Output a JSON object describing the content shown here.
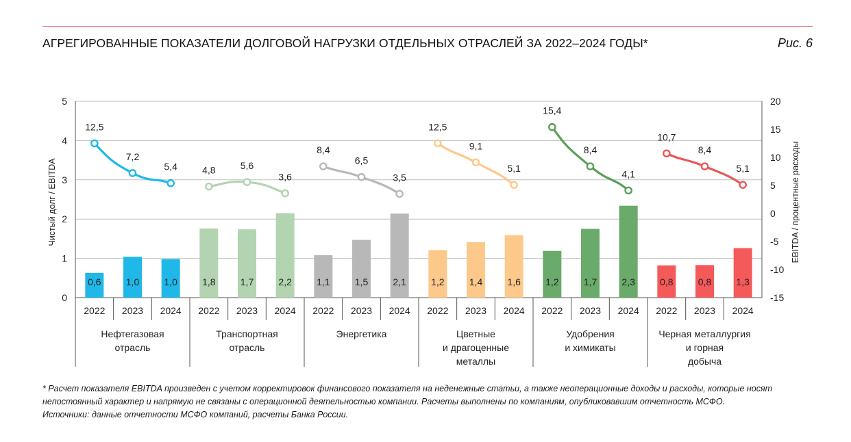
{
  "header": {
    "title": "АГРЕГИРОВАННЫЕ ПОКАЗАТЕЛИ ДОЛГОВОЙ НАГРУЗКИ ОТДЕЛЬНЫХ ОТРАСЛЕЙ ЗА 2022–2024 ГОДЫ*",
    "figure_label": "Рис. 6"
  },
  "colors": {
    "rule": "#e8787a",
    "gridline": "#bfbfbf"
  },
  "chart_data": {
    "type": "bar",
    "ylabel_left": "Чистый долг / EBITDA",
    "ylabel_right": "EBITDA / процентные расходы",
    "ylim_left": [
      0,
      5
    ],
    "yticks_left": [
      "0",
      "1",
      "2",
      "3",
      "4",
      "5"
    ],
    "ylim_right": [
      -15,
      20
    ],
    "yticks_right": [
      "-15",
      "-10",
      "-5",
      "0",
      "5",
      "10",
      "15",
      "20"
    ],
    "grid": true,
    "years": [
      "2022",
      "2023",
      "2024"
    ],
    "groups": [
      {
        "name_lines": [
          "Нефтегазовая",
          "отрасль"
        ],
        "bar_color": "#1fb8e8",
        "line_color": "#1fb8e8",
        "bar_values": [
          0.63,
          1.04,
          0.98
        ],
        "bar_labels": [
          "0,6",
          "1,0",
          "1,0"
        ],
        "line_values": [
          12.5,
          7.2,
          5.4
        ],
        "line_labels": [
          "12,5",
          "7,2",
          "5,4"
        ]
      },
      {
        "name_lines": [
          "Транспортная",
          "отрасль"
        ],
        "bar_color": "#b2d4b0",
        "line_color": "#b2d4b0",
        "bar_values": [
          1.76,
          1.74,
          2.15
        ],
        "bar_labels": [
          "1,8",
          "1,7",
          "2,2"
        ],
        "line_values": [
          4.8,
          5.6,
          3.6
        ],
        "line_labels": [
          "4,8",
          "5,6",
          "3,6"
        ]
      },
      {
        "name_lines": [
          "Энергетика"
        ],
        "bar_color": "#b8b8b8",
        "line_color": "#b8b8b8",
        "bar_values": [
          1.08,
          1.47,
          2.14
        ],
        "bar_labels": [
          "1,1",
          "1,5",
          "2,1"
        ],
        "line_values": [
          8.4,
          6.5,
          3.5
        ],
        "line_labels": [
          "8,4",
          "6,5",
          "3,5"
        ]
      },
      {
        "name_lines": [
          "Цветные",
          "и драгоценные",
          "металлы"
        ],
        "bar_color": "#fcc98a",
        "line_color": "#fcc98a",
        "bar_values": [
          1.21,
          1.41,
          1.59
        ],
        "bar_labels": [
          "1,2",
          "1,4",
          "1,6"
        ],
        "line_values": [
          12.5,
          9.1,
          5.1
        ],
        "line_labels": [
          "12,5",
          "9,1",
          "5,1"
        ]
      },
      {
        "name_lines": [
          "Удобрения",
          "и химикаты"
        ],
        "bar_color": "#6aaa6a",
        "line_color": "#5aa05a",
        "bar_values": [
          1.19,
          1.75,
          2.34
        ],
        "bar_labels": [
          "1,2",
          "1,7",
          "2,3"
        ],
        "line_values": [
          15.4,
          8.4,
          4.1
        ],
        "line_labels": [
          "15,4",
          "8,4",
          "4,1"
        ]
      },
      {
        "name_lines": [
          "Черная металлургия",
          "и горная",
          "добыча"
        ],
        "bar_color": "#f55a5a",
        "line_color": "#e85757",
        "bar_values": [
          0.82,
          0.83,
          1.26
        ],
        "bar_labels": [
          "0,8",
          "0,8",
          "1,3"
        ],
        "line_values": [
          10.7,
          8.4,
          5.1
        ],
        "line_labels": [
          "10,7",
          "8,4",
          "5,1"
        ]
      }
    ]
  },
  "footnote": {
    "line1": "* Расчет показателя EBITDA произведен с учетом корректировок финансового показателя на неденежные статьи, а также неоперационные доходы и расходы, которые носят",
    "line2": "непостоянный характер и напрямую не связаны с операционной деятельностью компании. Расчеты выполнены по компаниям, опубликовавшим отчетность МСФО.",
    "line3": "Источники: данные отчетности МСФО компаний, расчеты Банка России."
  }
}
